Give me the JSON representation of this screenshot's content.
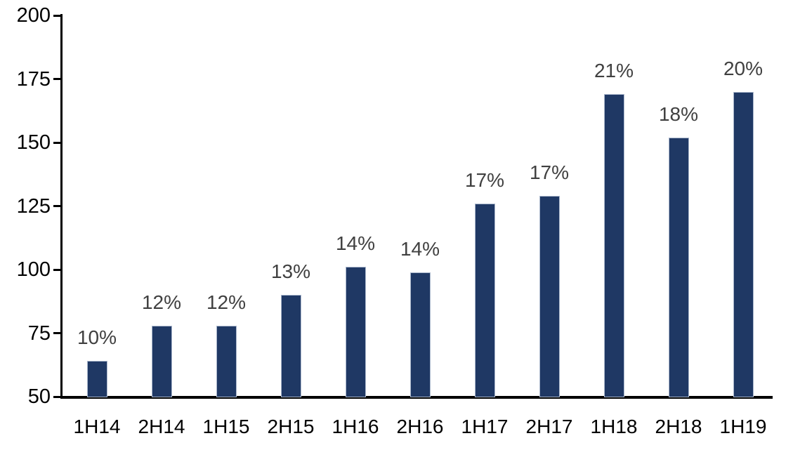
{
  "chart_data": {
    "type": "bar",
    "title": "",
    "xlabel": "",
    "ylabel": "",
    "categories": [
      "1H14",
      "2H14",
      "1H15",
      "2H15",
      "1H16",
      "2H16",
      "1H17",
      "2H17",
      "1H18",
      "2H18",
      "1H19"
    ],
    "values": [
      64,
      78,
      78,
      90,
      101,
      99,
      126,
      129,
      169,
      152,
      170
    ],
    "bar_labels": [
      "10%",
      "12%",
      "12%",
      "13%",
      "14%",
      "14%",
      "17%",
      "17%",
      "21%",
      "18%",
      "20%"
    ],
    "ylim": [
      50,
      200
    ],
    "yticks": [
      50,
      75,
      100,
      125,
      150,
      175,
      200
    ],
    "grid": false,
    "legend": false,
    "bar_color": "#1F3864",
    "bar_border_color": "#aab7cc",
    "value_label_color": "#404040",
    "axis_color": "#000000",
    "background_color": "#ffffff"
  }
}
